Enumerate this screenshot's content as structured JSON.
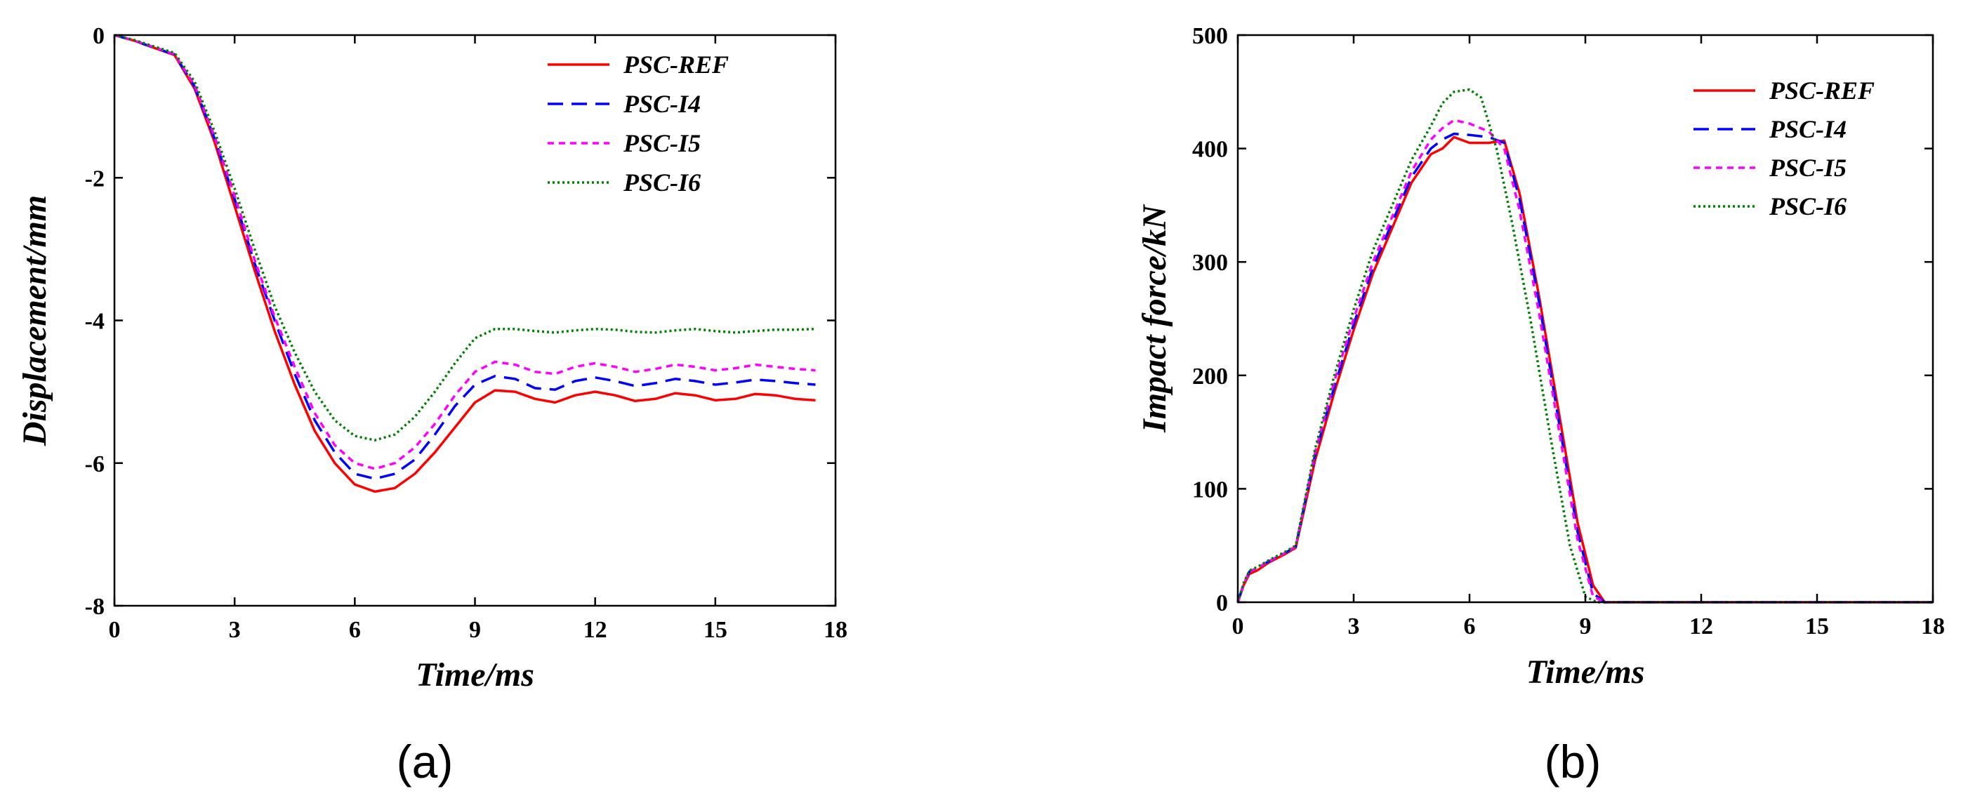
{
  "panels": [
    {
      "label": "(a)"
    },
    {
      "label": "(b)"
    }
  ],
  "series_colors": {
    "PSC-REF": "#ff0000",
    "PSC-I4": "#0000ff",
    "PSC-I5": "#ff00ff",
    "PSC-I6": "#008000"
  },
  "chart_data": [
    {
      "type": "line",
      "title": "",
      "xlabel": "Time/ms",
      "ylabel": "Displacement/mm",
      "xlim": [
        0,
        18
      ],
      "ylim": [
        -8,
        0
      ],
      "x_ticks": [
        0,
        3,
        6,
        9,
        12,
        15,
        18
      ],
      "y_ticks": [
        0,
        -2,
        -4,
        -6,
        -8
      ],
      "grid": false,
      "legend_position": "top-right",
      "series": [
        {
          "name": "PSC-REF",
          "color": "#ff0000",
          "style": "solid",
          "x": [
            0,
            0.5,
            1,
            1.5,
            2,
            2.5,
            3,
            3.5,
            4,
            4.5,
            5,
            5.5,
            6,
            6.5,
            7,
            7.5,
            8,
            8.5,
            9,
            9.5,
            10,
            10.5,
            11,
            11.5,
            12,
            12.5,
            13,
            13.5,
            14,
            14.5,
            15,
            15.5,
            16,
            16.5,
            17,
            17.5
          ],
          "y": [
            0,
            -0.08,
            -0.18,
            -0.28,
            -0.75,
            -1.5,
            -2.4,
            -3.3,
            -4.15,
            -4.9,
            -5.55,
            -6.0,
            -6.3,
            -6.4,
            -6.35,
            -6.15,
            -5.85,
            -5.5,
            -5.15,
            -4.98,
            -5.0,
            -5.1,
            -5.15,
            -5.05,
            -5.0,
            -5.05,
            -5.13,
            -5.1,
            -5.02,
            -5.05,
            -5.12,
            -5.1,
            -5.03,
            -5.05,
            -5.1,
            -5.12
          ]
        },
        {
          "name": "PSC-I4",
          "color": "#0000ff",
          "style": "dashed",
          "x": [
            0,
            0.5,
            1,
            1.5,
            2,
            2.5,
            3,
            3.5,
            4,
            4.5,
            5,
            5.5,
            6,
            6.5,
            7,
            7.5,
            8,
            8.5,
            9,
            9.5,
            10,
            10.5,
            11,
            11.5,
            12,
            12.5,
            13,
            13.5,
            14,
            14.5,
            15,
            15.5,
            16,
            16.5,
            17,
            17.5
          ],
          "y": [
            0,
            -0.08,
            -0.18,
            -0.27,
            -0.72,
            -1.45,
            -2.3,
            -3.2,
            -4.0,
            -4.75,
            -5.4,
            -5.85,
            -6.15,
            -6.22,
            -6.15,
            -5.95,
            -5.6,
            -5.2,
            -4.9,
            -4.78,
            -4.82,
            -4.95,
            -4.97,
            -4.85,
            -4.8,
            -4.85,
            -4.92,
            -4.88,
            -4.82,
            -4.85,
            -4.9,
            -4.87,
            -4.83,
            -4.85,
            -4.88,
            -4.9
          ]
        },
        {
          "name": "PSC-I5",
          "color": "#ff00ff",
          "style": "short-dashed",
          "x": [
            0,
            0.5,
            1,
            1.5,
            2,
            2.5,
            3,
            3.5,
            4,
            4.5,
            5,
            5.5,
            6,
            6.5,
            7,
            7.5,
            8,
            8.5,
            9,
            9.5,
            10,
            10.5,
            11,
            11.5,
            12,
            12.5,
            13,
            13.5,
            14,
            14.5,
            15,
            15.5,
            16,
            16.5,
            17,
            17.5
          ],
          "y": [
            0,
            -0.08,
            -0.17,
            -0.27,
            -0.7,
            -1.42,
            -2.25,
            -3.15,
            -3.95,
            -4.65,
            -5.3,
            -5.75,
            -6.0,
            -6.08,
            -6.0,
            -5.78,
            -5.45,
            -5.05,
            -4.72,
            -4.58,
            -4.62,
            -4.72,
            -4.75,
            -4.65,
            -4.6,
            -4.65,
            -4.72,
            -4.68,
            -4.62,
            -4.65,
            -4.7,
            -4.67,
            -4.62,
            -4.65,
            -4.68,
            -4.7
          ]
        },
        {
          "name": "PSC-I6",
          "color": "#008000",
          "style": "dotted",
          "x": [
            0,
            0.5,
            1,
            1.5,
            2,
            2.5,
            3,
            3.5,
            4,
            4.5,
            5,
            5.5,
            6,
            6.5,
            7,
            7.5,
            8,
            8.5,
            9,
            9.5,
            10,
            10.5,
            11,
            11.5,
            12,
            12.5,
            13,
            13.5,
            14,
            14.5,
            15,
            15.5,
            16,
            16.5,
            17,
            17.5
          ],
          "y": [
            0,
            -0.07,
            -0.16,
            -0.25,
            -0.65,
            -1.35,
            -2.15,
            -3.0,
            -3.8,
            -4.45,
            -5.0,
            -5.4,
            -5.62,
            -5.68,
            -5.6,
            -5.35,
            -5.0,
            -4.6,
            -4.25,
            -4.12,
            -4.12,
            -4.15,
            -4.17,
            -4.14,
            -4.12,
            -4.13,
            -4.16,
            -4.17,
            -4.14,
            -4.12,
            -4.15,
            -4.17,
            -4.15,
            -4.13,
            -4.13,
            -4.12
          ]
        }
      ]
    },
    {
      "type": "line",
      "title": "",
      "xlabel": "Time/ms",
      "ylabel": "Impact force/kN",
      "xlim": [
        0,
        18
      ],
      "ylim": [
        0,
        500
      ],
      "x_ticks": [
        0,
        3,
        6,
        9,
        12,
        15,
        18
      ],
      "y_ticks": [
        0,
        100,
        200,
        300,
        400,
        500
      ],
      "grid": false,
      "legend_position": "top-right",
      "series": [
        {
          "name": "PSC-REF",
          "color": "#ff0000",
          "style": "solid",
          "x": [
            0,
            0.15,
            0.3,
            0.5,
            0.8,
            1.2,
            1.5,
            2.0,
            2.5,
            3.0,
            3.5,
            4.0,
            4.5,
            5.0,
            5.3,
            5.6,
            6.0,
            6.5,
            6.9,
            7.3,
            7.8,
            8.3,
            8.8,
            9.2,
            9.5,
            10,
            12,
            15,
            18
          ],
          "y": [
            0,
            15,
            25,
            28,
            35,
            42,
            48,
            125,
            185,
            240,
            290,
            330,
            370,
            395,
            400,
            410,
            405,
            405,
            407,
            360,
            270,
            170,
            70,
            15,
            0,
            0,
            0,
            0,
            0
          ]
        },
        {
          "name": "PSC-I4",
          "color": "#0000ff",
          "style": "dashed",
          "x": [
            0,
            0.15,
            0.3,
            0.5,
            0.8,
            1.2,
            1.5,
            2.0,
            2.5,
            3.0,
            3.5,
            4.0,
            4.5,
            5.0,
            5.3,
            5.6,
            6.0,
            6.5,
            6.9,
            7.3,
            7.8,
            8.3,
            8.8,
            9.2,
            9.5,
            10,
            12,
            15,
            18
          ],
          "y": [
            0,
            16,
            27,
            30,
            36,
            43,
            49,
            130,
            190,
            245,
            295,
            335,
            375,
            400,
            408,
            413,
            412,
            410,
            405,
            355,
            265,
            162,
            62,
            8,
            0,
            0,
            0,
            0,
            0
          ]
        },
        {
          "name": "PSC-I5",
          "color": "#ff00ff",
          "style": "short-dashed",
          "x": [
            0,
            0.15,
            0.3,
            0.5,
            0.8,
            1.2,
            1.5,
            2.0,
            2.5,
            3.0,
            3.5,
            4.0,
            4.5,
            5.0,
            5.3,
            5.6,
            6.0,
            6.5,
            6.9,
            7.3,
            7.8,
            8.3,
            8.8,
            9.2,
            9.5,
            10,
            12,
            15,
            18
          ],
          "y": [
            0,
            16,
            27,
            30,
            36,
            43,
            49,
            132,
            195,
            250,
            300,
            340,
            380,
            408,
            418,
            425,
            422,
            415,
            400,
            345,
            255,
            155,
            55,
            5,
            0,
            0,
            0,
            0,
            0
          ]
        },
        {
          "name": "PSC-I6",
          "color": "#008000",
          "style": "dotted",
          "x": [
            0,
            0.15,
            0.3,
            0.5,
            0.8,
            1.2,
            1.5,
            2.0,
            2.5,
            3.0,
            3.5,
            4.0,
            4.5,
            5.0,
            5.3,
            5.6,
            6.0,
            6.3,
            6.7,
            7.1,
            7.6,
            8.1,
            8.6,
            9.0,
            9.3,
            10,
            12,
            15,
            18
          ],
          "y": [
            0,
            17,
            28,
            31,
            37,
            44,
            50,
            135,
            200,
            258,
            310,
            350,
            390,
            420,
            440,
            450,
            452,
            445,
            400,
            335,
            245,
            145,
            50,
            5,
            0,
            0,
            0,
            0,
            0
          ]
        }
      ]
    }
  ]
}
